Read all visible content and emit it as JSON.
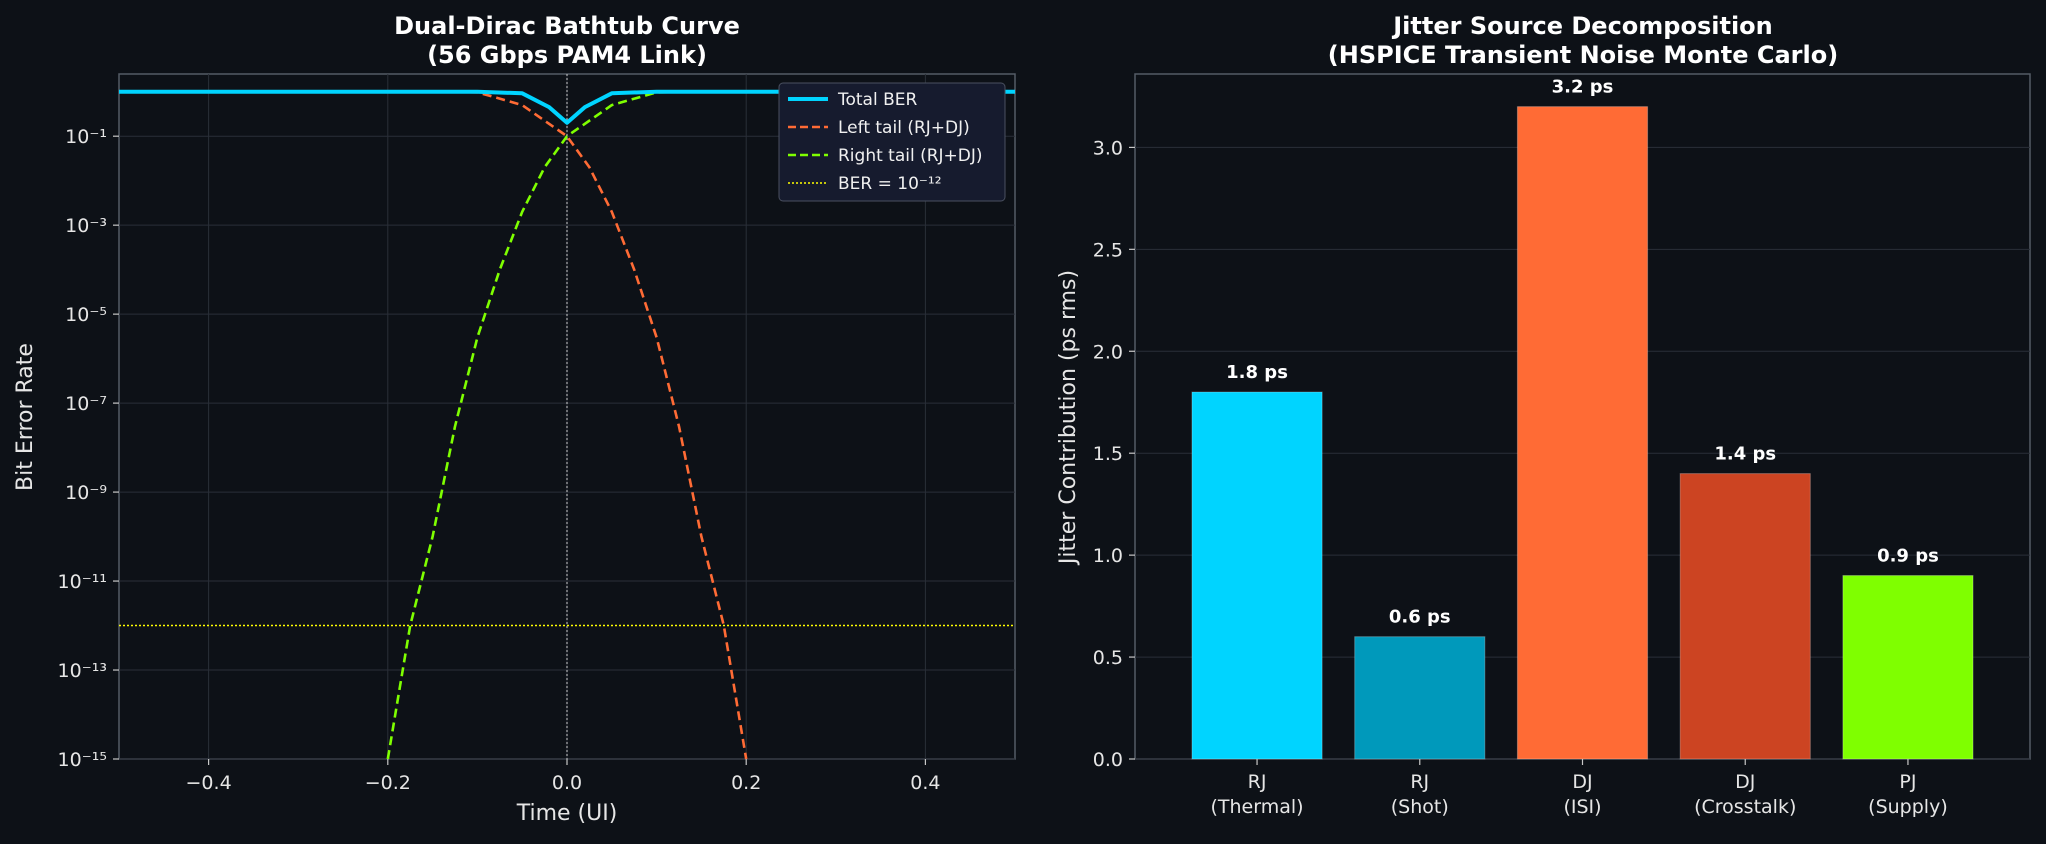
{
  "chart_data": [
    {
      "type": "line",
      "title_line1": "Dual-Dirac Bathtub Curve",
      "title_line2": "(56 Gbps PAM4 Link)",
      "xlabel": "Time (UI)",
      "ylabel": "Bit Error Rate",
      "xlim": [
        -0.5,
        0.5
      ],
      "ylim": [
        1e-15,
        1
      ],
      "yscale": "log",
      "x_ticks": [
        {
          "value": -0.4,
          "label": "−0.4"
        },
        {
          "value": -0.2,
          "label": "−0.2"
        },
        {
          "value": 0.0,
          "label": "0.0"
        },
        {
          "value": 0.2,
          "label": "0.2"
        },
        {
          "value": 0.4,
          "label": "0.4"
        }
      ],
      "y_ticks": [
        {
          "exp": -1,
          "label": "10⁻¹"
        },
        {
          "exp": -3,
          "label": "10⁻³"
        },
        {
          "exp": -5,
          "label": "10⁻⁵"
        },
        {
          "exp": -7,
          "label": "10⁻⁷"
        },
        {
          "exp": -9,
          "label": "10⁻⁹"
        },
        {
          "exp": -11,
          "label": "10⁻¹¹"
        },
        {
          "exp": -13,
          "label": "10⁻¹³"
        },
        {
          "exp": -15,
          "label": "10⁻¹⁵"
        }
      ],
      "grid": true,
      "legend_position": "top-right",
      "series": [
        {
          "name": "Total BER",
          "color": "#00d4ff",
          "style": "solid",
          "x": [
            -0.5,
            -0.2,
            -0.15,
            -0.1,
            -0.05,
            -0.02,
            0.0,
            0.02,
            0.05,
            0.1,
            0.15,
            0.2,
            0.5
          ],
          "y": [
            1,
            1,
            1,
            0.998,
            0.92,
            0.45,
            0.2,
            0.45,
            0.92,
            0.998,
            1,
            1,
            1
          ]
        },
        {
          "name": "Left tail (RJ+DJ)",
          "color": "#ff6b35",
          "style": "dashed",
          "x": [
            -0.5,
            -0.15,
            -0.1,
            -0.05,
            0.0,
            0.025,
            0.05,
            0.075,
            0.1,
            0.125,
            0.15,
            0.175,
            0.2
          ],
          "y": [
            1,
            1,
            0.97,
            0.5,
            0.1,
            0.02,
            0.002,
            0.0001,
            3e-06,
            3e-08,
            1e-10,
            1e-12,
            1e-15
          ]
        },
        {
          "name": "Right tail (RJ+DJ)",
          "color": "#7fff00",
          "style": "dashed",
          "x": [
            -0.2,
            -0.175,
            -0.15,
            -0.125,
            -0.1,
            -0.075,
            -0.05,
            -0.025,
            0.0,
            0.05,
            0.1,
            0.15,
            0.5
          ],
          "y": [
            1e-15,
            1e-12,
            1e-10,
            3e-08,
            3e-06,
            0.0001,
            0.002,
            0.02,
            0.1,
            0.5,
            0.97,
            1,
            1
          ]
        },
        {
          "name": "BER = 10⁻¹²",
          "color": "#ffff00",
          "style": "dotted",
          "x": [
            -0.5,
            0.5
          ],
          "y": [
            1e-12,
            1e-12
          ]
        }
      ]
    },
    {
      "type": "bar",
      "title_line1": "Jitter Source Decomposition",
      "title_line2": "(HSPICE Transient Noise Monte Carlo)",
      "xlabel": "",
      "ylabel": "Jitter Contribution (ps rms)",
      "ylim": [
        0,
        3.36
      ],
      "y_ticks": [
        {
          "value": 0.0,
          "label": "0.0"
        },
        {
          "value": 0.5,
          "label": "0.5"
        },
        {
          "value": 1.0,
          "label": "1.0"
        },
        {
          "value": 1.5,
          "label": "1.5"
        },
        {
          "value": 2.0,
          "label": "2.0"
        },
        {
          "value": 2.5,
          "label": "2.5"
        },
        {
          "value": 3.0,
          "label": "3.0"
        }
      ],
      "grid": true,
      "categories": [
        {
          "line1": "RJ",
          "line2": "(Thermal)"
        },
        {
          "line1": "RJ",
          "line2": "(Shot)"
        },
        {
          "line1": "DJ",
          "line2": "(ISI)"
        },
        {
          "line1": "DJ",
          "line2": "(Crosstalk)"
        },
        {
          "line1": "PJ",
          "line2": "(Supply)"
        }
      ],
      "values": [
        1.8,
        0.6,
        3.2,
        1.4,
        0.9
      ],
      "value_labels": [
        "1.8 ps",
        "0.6 ps",
        "3.2 ps",
        "1.4 ps",
        "0.9 ps"
      ],
      "colors": [
        "#00d4ff",
        "#0099bb",
        "#ff6b35",
        "#cc4422",
        "#7fff00"
      ]
    }
  ]
}
